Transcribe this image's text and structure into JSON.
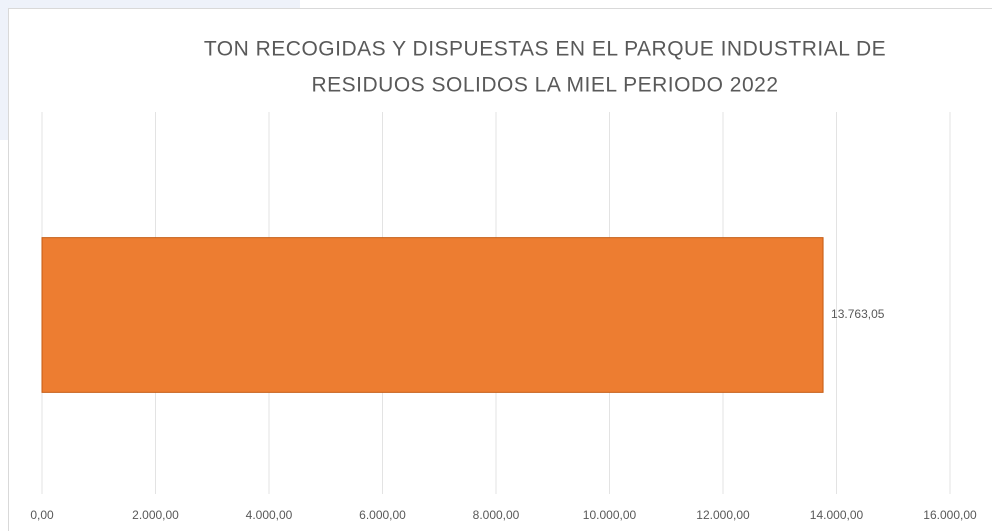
{
  "chart_data": {
    "type": "barh",
    "title": [
      "TON RECOGIDAS Y DISPUESTAS EN EL PARQUE INDUSTRIAL DE",
      "RESIDUOS SOLIDOS LA MIEL PERIODO 2022"
    ],
    "categories": [
      null
    ],
    "values": [
      13763.05
    ],
    "value_labels": [
      "13.763,05"
    ],
    "color": "#ed7d31",
    "xlim": [
      0,
      16000
    ],
    "xticks": [
      {
        "value": 0,
        "label": "0,00"
      },
      {
        "value": 2000,
        "label": "2.000,00"
      },
      {
        "value": 4000,
        "label": "4.000,00"
      },
      {
        "value": 6000,
        "label": "6.000,00"
      },
      {
        "value": 8000,
        "label": "8.000,00"
      },
      {
        "value": 10000,
        "label": "10.000,00"
      },
      {
        "value": 12000,
        "label": "12.000,00"
      },
      {
        "value": 14000,
        "label": "14.000,00"
      },
      {
        "value": 16000,
        "label": "16.000,00"
      }
    ],
    "grid": true
  }
}
